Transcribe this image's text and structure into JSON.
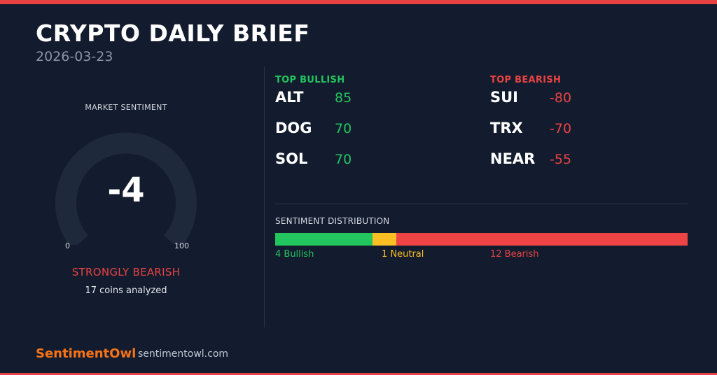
{
  "header": {
    "title": "CRYPTO DAILY BRIEF",
    "date": "2026-03-23"
  },
  "gauge": {
    "label": "MARKET SENTIMENT",
    "value": "-4",
    "min_label": "0",
    "max_label": "100",
    "verdict": "STRONGLY BEARISH",
    "coins_analyzed": "17 coins analyzed"
  },
  "bullish": {
    "heading": "TOP BULLISH",
    "items": [
      {
        "ticker": "ALT",
        "score": "85"
      },
      {
        "ticker": "DOG",
        "score": "70"
      },
      {
        "ticker": "SOL",
        "score": "70"
      }
    ]
  },
  "bearish": {
    "heading": "TOP BEARISH",
    "items": [
      {
        "ticker": "SUI",
        "score": "-80"
      },
      {
        "ticker": "TRX",
        "score": "-70"
      },
      {
        "ticker": "NEAR",
        "score": "-55"
      }
    ]
  },
  "distribution": {
    "label": "SENTIMENT DISTRIBUTION",
    "bullish_count": 4,
    "neutral_count": 1,
    "bearish_count": 12,
    "bullish_label": "4 Bullish",
    "neutral_label": "1 Neutral",
    "bearish_label": "12 Bearish"
  },
  "footer": {
    "brand": "SentimentOwl",
    "site": "sentimentowl.com"
  },
  "colors": {
    "background": "#131c2e",
    "bullish": "#22c55e",
    "neutral": "#fbbf24",
    "bearish": "#ef4444",
    "brand": "#f97316",
    "accent_stripe": "#e84342"
  }
}
